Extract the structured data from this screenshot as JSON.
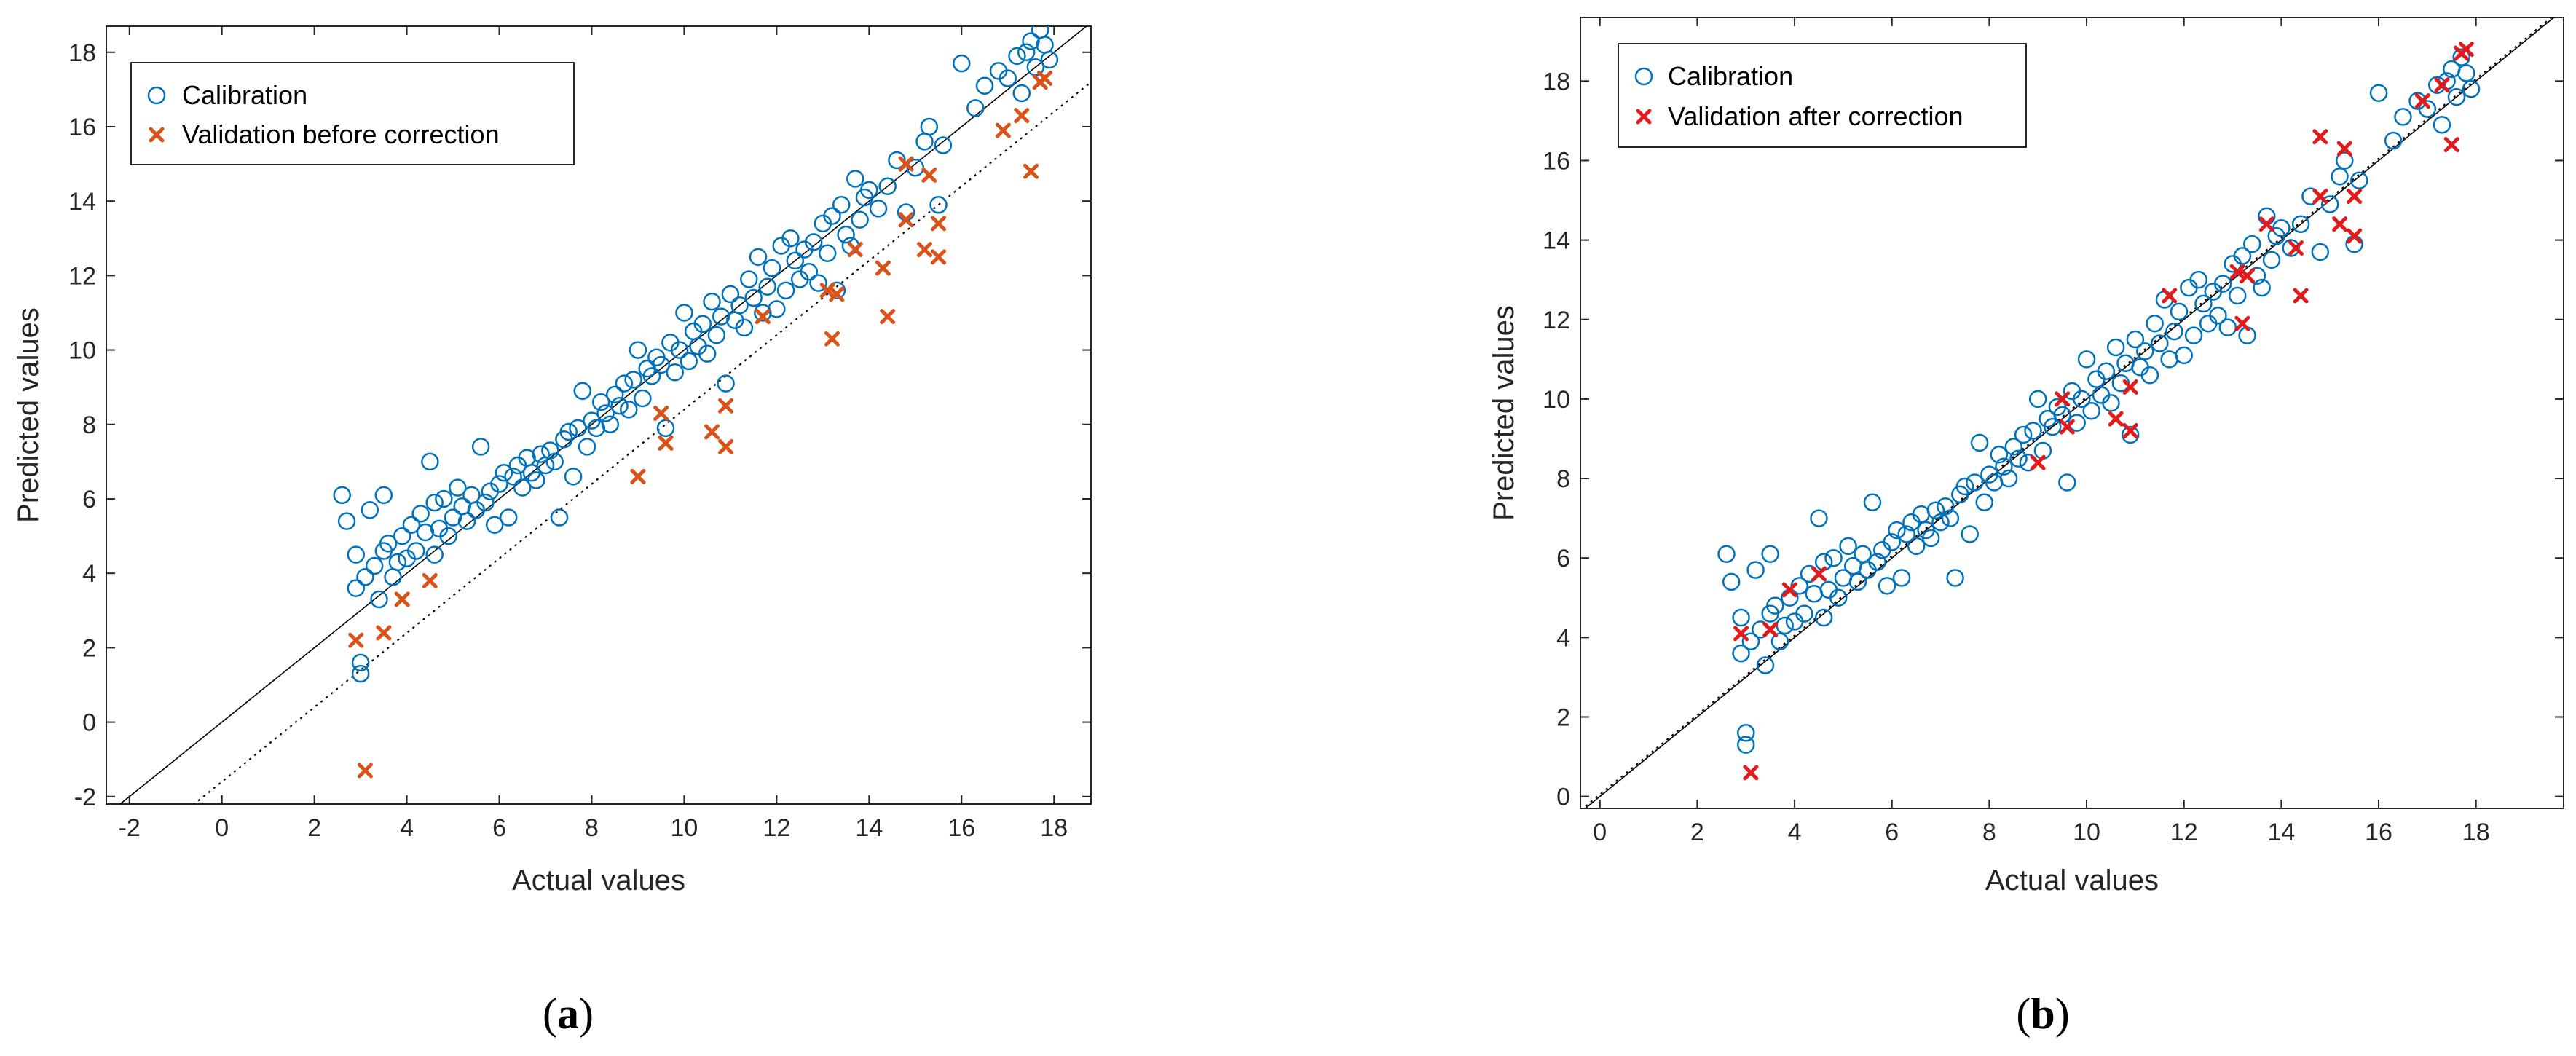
{
  "chart_data": [
    {
      "type": "scatter",
      "panel_label": "(a)",
      "xlabel": "Actual values",
      "ylabel": "Predicted values",
      "xlim": [
        -2.5,
        18.8
      ],
      "ylim": [
        -2.2,
        18.7
      ],
      "xticks": [
        -2,
        0,
        2,
        4,
        6,
        8,
        10,
        12,
        14,
        16,
        18
      ],
      "yticks": [
        -2,
        0,
        2,
        4,
        6,
        8,
        10,
        12,
        14,
        16,
        18
      ],
      "grid": false,
      "legend_position": "top-left",
      "reference_lines": [
        {
          "style": "solid",
          "slope": 1,
          "intercept": 0
        },
        {
          "style": "dotted",
          "slope": 1,
          "intercept": -1.6
        }
      ],
      "series": [
        {
          "name": "Calibration",
          "marker": "circle",
          "color": "#0072BD",
          "x": [
            2.6,
            2.7,
            2.9,
            2.9,
            3.0,
            3.0,
            3.1,
            3.2,
            3.3,
            3.4,
            3.5,
            3.5,
            3.6,
            3.7,
            3.8,
            3.9,
            4.0,
            4.1,
            4.2,
            4.3,
            4.4,
            4.5,
            4.6,
            4.6,
            4.7,
            4.8,
            4.9,
            5.0,
            5.1,
            5.2,
            5.3,
            5.4,
            5.5,
            5.6,
            5.7,
            5.8,
            5.9,
            6.0,
            6.1,
            6.2,
            6.3,
            6.4,
            6.5,
            6.6,
            6.7,
            6.8,
            6.9,
            7.0,
            7.1,
            7.2,
            7.3,
            7.4,
            7.5,
            7.6,
            7.7,
            7.8,
            7.9,
            8.0,
            8.1,
            8.2,
            8.3,
            8.4,
            8.5,
            8.6,
            8.7,
            8.8,
            8.9,
            9.0,
            9.1,
            9.2,
            9.3,
            9.4,
            9.5,
            9.6,
            9.7,
            9.8,
            9.9,
            10.0,
            10.1,
            10.2,
            10.3,
            10.4,
            10.5,
            10.6,
            10.7,
            10.8,
            10.9,
            11.0,
            11.1,
            11.2,
            11.3,
            11.4,
            11.5,
            11.6,
            11.7,
            11.8,
            11.9,
            12.0,
            12.1,
            12.2,
            12.3,
            12.4,
            12.5,
            12.6,
            12.7,
            12.8,
            12.9,
            13.0,
            13.1,
            13.2,
            13.3,
            13.4,
            13.5,
            13.6,
            13.7,
            13.8,
            13.9,
            14.0,
            14.2,
            14.4,
            14.6,
            14.8,
            15.0,
            15.2,
            15.3,
            15.5,
            15.6,
            16.0,
            16.3,
            16.5,
            16.8,
            17.0,
            17.2,
            17.3,
            17.4,
            17.5,
            17.6,
            17.7,
            17.8,
            17.9
          ],
          "y": [
            6.1,
            5.4,
            4.5,
            3.6,
            1.6,
            1.3,
            3.9,
            5.7,
            4.2,
            3.3,
            6.1,
            4.6,
            4.8,
            3.9,
            4.3,
            5.0,
            4.4,
            5.3,
            4.6,
            5.6,
            5.1,
            7.0,
            5.9,
            4.5,
            5.2,
            6.0,
            5.0,
            5.5,
            6.3,
            5.8,
            5.4,
            6.1,
            5.7,
            7.4,
            5.9,
            6.2,
            5.3,
            6.4,
            6.7,
            5.5,
            6.6,
            6.9,
            6.3,
            7.1,
            6.7,
            6.5,
            7.2,
            6.9,
            7.3,
            7.0,
            5.5,
            7.6,
            7.8,
            6.6,
            7.9,
            8.9,
            7.4,
            8.1,
            7.9,
            8.6,
            8.3,
            8.0,
            8.8,
            8.5,
            9.1,
            8.4,
            9.2,
            10.0,
            8.7,
            9.5,
            9.3,
            9.8,
            9.6,
            7.9,
            10.2,
            9.4,
            10.0,
            11.0,
            9.7,
            10.5,
            10.1,
            10.7,
            9.9,
            11.3,
            10.4,
            10.9,
            9.1,
            11.5,
            10.8,
            11.2,
            10.6,
            11.9,
            11.4,
            12.5,
            11.0,
            11.7,
            12.2,
            11.1,
            12.8,
            11.6,
            13.0,
            12.4,
            11.9,
            12.7,
            12.1,
            12.9,
            11.8,
            13.4,
            12.6,
            13.6,
            11.6,
            13.9,
            13.1,
            12.8,
            14.6,
            13.5,
            14.1,
            14.3,
            13.8,
            14.4,
            15.1,
            13.7,
            14.9,
            15.6,
            16.0,
            13.9,
            15.5,
            17.7,
            16.5,
            17.1,
            17.5,
            17.3,
            17.9,
            16.9,
            18.0,
            18.3,
            17.6,
            18.6,
            18.2,
            17.8
          ]
        },
        {
          "name": "Validation before correction",
          "marker": "x",
          "color": "#D95319",
          "x": [
            2.9,
            3.1,
            3.5,
            3.9,
            4.5,
            9.0,
            9.5,
            9.6,
            10.6,
            10.9,
            10.9,
            11.7,
            13.1,
            13.2,
            13.3,
            13.7,
            14.3,
            14.4,
            14.8,
            14.8,
            15.2,
            15.3,
            15.5,
            15.5,
            16.9,
            17.3,
            17.5,
            17.7,
            17.8
          ],
          "y": [
            2.2,
            -1.3,
            2.4,
            3.3,
            3.8,
            6.6,
            8.3,
            7.5,
            7.8,
            7.4,
            8.5,
            10.9,
            11.6,
            10.3,
            11.5,
            12.7,
            12.2,
            10.9,
            13.5,
            15.0,
            12.7,
            14.7,
            12.5,
            13.4,
            15.9,
            16.3,
            14.8,
            17.2,
            17.3
          ]
        }
      ]
    },
    {
      "type": "scatter",
      "panel_label": "(b)",
      "xlabel": "Actual values",
      "ylabel": "Predicted values",
      "xlim": [
        -0.4,
        19.8
      ],
      "ylim": [
        -0.3,
        19.6
      ],
      "xticks": [
        0,
        2,
        4,
        6,
        8,
        10,
        12,
        14,
        16,
        18
      ],
      "yticks": [
        0,
        2,
        4,
        6,
        8,
        10,
        12,
        14,
        16,
        18
      ],
      "grid": false,
      "legend_position": "top-left",
      "reference_lines": [
        {
          "style": "solid",
          "slope": 1,
          "intercept": 0
        },
        {
          "style": "dotted",
          "slope": 1,
          "intercept": 0.05
        }
      ],
      "series": [
        {
          "name": "Calibration",
          "marker": "circle",
          "color": "#0072BD",
          "x": [
            2.6,
            2.7,
            2.9,
            2.9,
            3.0,
            3.0,
            3.1,
            3.2,
            3.3,
            3.4,
            3.5,
            3.5,
            3.6,
            3.7,
            3.8,
            3.9,
            4.0,
            4.1,
            4.2,
            4.3,
            4.4,
            4.5,
            4.6,
            4.6,
            4.7,
            4.8,
            4.9,
            5.0,
            5.1,
            5.2,
            5.3,
            5.4,
            5.5,
            5.6,
            5.7,
            5.8,
            5.9,
            6.0,
            6.1,
            6.2,
            6.3,
            6.4,
            6.5,
            6.6,
            6.7,
            6.8,
            6.9,
            7.0,
            7.1,
            7.2,
            7.3,
            7.4,
            7.5,
            7.6,
            7.7,
            7.8,
            7.9,
            8.0,
            8.1,
            8.2,
            8.3,
            8.4,
            8.5,
            8.6,
            8.7,
            8.8,
            8.9,
            9.0,
            9.1,
            9.2,
            9.3,
            9.4,
            9.5,
            9.6,
            9.7,
            9.8,
            9.9,
            10.0,
            10.1,
            10.2,
            10.3,
            10.4,
            10.5,
            10.6,
            10.7,
            10.8,
            10.9,
            11.0,
            11.1,
            11.2,
            11.3,
            11.4,
            11.5,
            11.6,
            11.7,
            11.8,
            11.9,
            12.0,
            12.1,
            12.2,
            12.3,
            12.4,
            12.5,
            12.6,
            12.7,
            12.8,
            12.9,
            13.0,
            13.1,
            13.2,
            13.3,
            13.4,
            13.5,
            13.6,
            13.7,
            13.8,
            13.9,
            14.0,
            14.2,
            14.4,
            14.6,
            14.8,
            15.0,
            15.2,
            15.3,
            15.5,
            15.6,
            16.0,
            16.3,
            16.5,
            16.8,
            17.0,
            17.2,
            17.3,
            17.4,
            17.5,
            17.6,
            17.7,
            17.8,
            17.9
          ],
          "y": [
            6.1,
            5.4,
            4.5,
            3.6,
            1.6,
            1.3,
            3.9,
            5.7,
            4.2,
            3.3,
            6.1,
            4.6,
            4.8,
            3.9,
            4.3,
            5.0,
            4.4,
            5.3,
            4.6,
            5.6,
            5.1,
            7.0,
            5.9,
            4.5,
            5.2,
            6.0,
            5.0,
            5.5,
            6.3,
            5.8,
            5.4,
            6.1,
            5.7,
            7.4,
            5.9,
            6.2,
            5.3,
            6.4,
            6.7,
            5.5,
            6.6,
            6.9,
            6.3,
            7.1,
            6.7,
            6.5,
            7.2,
            6.9,
            7.3,
            7.0,
            5.5,
            7.6,
            7.8,
            6.6,
            7.9,
            8.9,
            7.4,
            8.1,
            7.9,
            8.6,
            8.3,
            8.0,
            8.8,
            8.5,
            9.1,
            8.4,
            9.2,
            10.0,
            8.7,
            9.5,
            9.3,
            9.8,
            9.6,
            7.9,
            10.2,
            9.4,
            10.0,
            11.0,
            9.7,
            10.5,
            10.1,
            10.7,
            9.9,
            11.3,
            10.4,
            10.9,
            9.1,
            11.5,
            10.8,
            11.2,
            10.6,
            11.9,
            11.4,
            12.5,
            11.0,
            11.7,
            12.2,
            11.1,
            12.8,
            11.6,
            13.0,
            12.4,
            11.9,
            12.7,
            12.1,
            12.9,
            11.8,
            13.4,
            12.6,
            13.6,
            11.6,
            13.9,
            13.1,
            12.8,
            14.6,
            13.5,
            14.1,
            14.3,
            13.8,
            14.4,
            15.1,
            13.7,
            14.9,
            15.6,
            16.0,
            13.9,
            15.5,
            17.7,
            16.5,
            17.1,
            17.5,
            17.3,
            17.9,
            16.9,
            18.0,
            18.3,
            17.6,
            18.6,
            18.2,
            17.8
          ]
        },
        {
          "name": "Validation after correction",
          "marker": "x",
          "color": "#E31A1C",
          "x": [
            2.9,
            3.1,
            3.5,
            3.9,
            4.5,
            9.0,
            9.5,
            9.6,
            10.6,
            10.9,
            10.9,
            11.7,
            13.1,
            13.2,
            13.3,
            13.7,
            14.3,
            14.4,
            14.8,
            14.8,
            15.2,
            15.3,
            15.5,
            15.5,
            16.9,
            17.3,
            17.5,
            17.7,
            17.8
          ],
          "y": [
            4.1,
            0.6,
            4.2,
            5.2,
            5.6,
            8.4,
            10.0,
            9.3,
            9.5,
            9.2,
            10.3,
            12.6,
            13.2,
            11.9,
            13.1,
            14.4,
            13.8,
            12.6,
            15.1,
            16.6,
            14.4,
            16.3,
            14.1,
            15.1,
            17.5,
            17.9,
            16.4,
            18.7,
            18.8
          ]
        }
      ]
    }
  ]
}
